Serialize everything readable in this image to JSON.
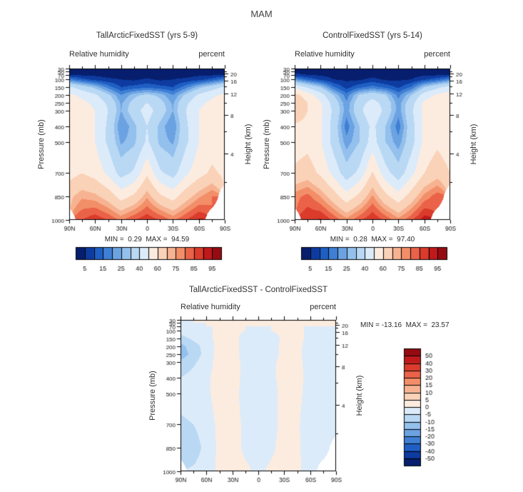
{
  "figure": {
    "title": "MAM"
  },
  "panels": [
    {
      "key": "tall",
      "title": "TallArcticFixedSST (yrs 5-9)",
      "subtitle_left": "Relative humidity",
      "subtitle_right": "percent",
      "minmax": "MIN =  0.29  MAX =  94.59"
    },
    {
      "key": "control",
      "title": "ControlFixedSST (yrs 5-14)",
      "subtitle_left": "Relative humidity",
      "subtitle_right": "percent",
      "minmax": "MIN =  0.28  MAX =  97.40"
    },
    {
      "key": "diff",
      "title": "TallArcticFixedSST - ControlFixedSST",
      "subtitle_left": "Relative humidity",
      "subtitle_right": "percent",
      "minmax": "MIN = -13.16  MAX =  23.57"
    }
  ],
  "axes": {
    "ylabel": "Pressure (mb)",
    "y2label": "Height (km)",
    "pressure_ticks": [
      30,
      50,
      70,
      100,
      150,
      200,
      250,
      300,
      400,
      500,
      700,
      850,
      1000
    ],
    "height_ticks_km": [
      20,
      16,
      12,
      8,
      4
    ],
    "height_minor_km": [
      2,
      6,
      10,
      14,
      18,
      22
    ],
    "lat_ticks": [
      {
        "lat": 90,
        "label": "90N"
      },
      {
        "lat": 60,
        "label": "60N"
      },
      {
        "lat": 30,
        "label": "30N"
      },
      {
        "lat": 0,
        "label": "0"
      },
      {
        "lat": -30,
        "label": "30S"
      },
      {
        "lat": -60,
        "label": "60S"
      },
      {
        "lat": -90,
        "label": "90S"
      }
    ],
    "lat_minor": [
      75,
      45,
      15,
      -15,
      -45,
      -75
    ]
  },
  "chart_data": {
    "type": "heatmap",
    "season": "MAM",
    "field": "Relative humidity",
    "units": "percent",
    "x": [
      90,
      75,
      60,
      45,
      30,
      15,
      0,
      -15,
      -30,
      -45,
      -60,
      -75,
      -90
    ],
    "x_unit": "degrees latitude (90N left to 90S right)",
    "y": [
      30,
      50,
      70,
      100,
      150,
      200,
      250,
      300,
      400,
      500,
      700,
      850,
      1000
    ],
    "y_unit": "mb (linear pressure axis, 30 top to 1000 bottom)",
    "rh_scale": {
      "levels": [
        5,
        10,
        15,
        20,
        25,
        30,
        40,
        50,
        60,
        70,
        75,
        80,
        85,
        90,
        95
      ],
      "labeled": [
        5,
        15,
        25,
        40,
        60,
        75,
        85,
        95
      ],
      "colors": [
        "#071e6e",
        "#0d3ba0",
        "#1f5fc4",
        "#3f7fd4",
        "#6ba2e2",
        "#93c0ec",
        "#b9d8f4",
        "#dcebfa",
        "#fcecdf",
        "#fad2b8",
        "#f7b391",
        "#f28e68",
        "#ea6248",
        "#da3b2b",
        "#c0191c",
        "#960b12"
      ]
    },
    "diff_scale": {
      "levels": [
        -50,
        -40,
        -30,
        -20,
        -15,
        -10,
        -5,
        0,
        5,
        10,
        15,
        20,
        30,
        40,
        50
      ],
      "labeled": [
        50,
        40,
        30,
        20,
        15,
        10,
        5,
        0,
        -5,
        -10,
        -15,
        -20,
        -30,
        -40,
        -50
      ],
      "colors": [
        "#071e6e",
        "#0d3ba0",
        "#1f5fc4",
        "#3f7fd4",
        "#6ba2e2",
        "#93c0ec",
        "#b9d8f4",
        "#dcebfa",
        "#fcecdf",
        "#fad2b8",
        "#f7b391",
        "#f28e68",
        "#ea6248",
        "#da3b2b",
        "#c0191c",
        "#960b12"
      ]
    },
    "series": [
      {
        "name": "TallArcticFixedSST (yrs 5-9)",
        "min": 0.29,
        "max": 94.59,
        "values": [
          [
            2,
            2,
            2,
            2,
            2,
            1,
            1,
            1,
            2,
            2,
            2,
            2,
            2
          ],
          [
            3,
            3,
            3,
            2,
            2,
            1,
            1,
            1,
            2,
            2,
            3,
            3,
            3
          ],
          [
            5,
            4,
            4,
            3,
            3,
            2,
            2,
            2,
            3,
            3,
            4,
            4,
            5
          ],
          [
            18,
            12,
            8,
            6,
            5,
            4,
            6,
            4,
            5,
            6,
            8,
            12,
            18
          ],
          [
            42,
            35,
            28,
            18,
            10,
            12,
            14,
            12,
            10,
            18,
            28,
            35,
            42
          ],
          [
            52,
            48,
            42,
            32,
            20,
            28,
            32,
            28,
            20,
            32,
            42,
            48,
            52
          ],
          [
            56,
            52,
            48,
            38,
            24,
            33,
            40,
            33,
            24,
            38,
            48,
            52,
            56
          ],
          [
            56,
            54,
            50,
            40,
            25,
            35,
            45,
            35,
            25,
            40,
            50,
            54,
            56
          ],
          [
            54,
            55,
            50,
            38,
            20,
            28,
            40,
            28,
            20,
            38,
            50,
            55,
            54
          ],
          [
            52,
            55,
            50,
            38,
            24,
            28,
            42,
            28,
            24,
            38,
            50,
            55,
            52
          ],
          [
            56,
            60,
            56,
            48,
            36,
            42,
            58,
            42,
            36,
            48,
            56,
            62,
            58
          ],
          [
            68,
            74,
            72,
            66,
            56,
            62,
            74,
            62,
            56,
            66,
            74,
            80,
            null
          ],
          [
            null,
            85,
            89,
            85,
            79,
            85,
            89,
            85,
            79,
            85,
            91,
            null,
            null
          ]
        ]
      },
      {
        "name": "ControlFixedSST (yrs 5-14)",
        "min": 0.28,
        "max": 97.4,
        "values": [
          [
            2,
            2,
            2,
            2,
            2,
            1,
            1,
            1,
            2,
            2,
            2,
            2,
            2
          ],
          [
            4,
            3,
            3,
            2,
            2,
            1,
            1,
            1,
            2,
            2,
            3,
            3,
            3
          ],
          [
            6,
            5,
            4,
            3,
            3,
            2,
            2,
            2,
            3,
            3,
            4,
            4,
            5
          ],
          [
            21,
            14,
            9,
            5,
            4,
            4,
            7,
            4,
            4,
            5,
            9,
            13,
            19
          ],
          [
            49,
            39,
            30,
            16,
            8,
            14,
            17,
            14,
            9,
            16,
            30,
            38,
            44
          ],
          [
            64,
            55,
            45,
            30,
            17,
            31,
            36,
            31,
            18,
            30,
            45,
            52,
            55
          ],
          [
            69,
            60,
            51,
            36,
            21,
            36,
            44,
            36,
            22,
            36,
            52,
            56,
            59
          ],
          [
            65,
            60,
            52,
            38,
            22,
            37,
            49,
            37,
            22,
            38,
            53,
            57,
            58
          ],
          [
            59,
            58,
            51,
            36,
            17,
            30,
            43,
            30,
            17,
            36,
            52,
            58,
            56
          ],
          [
            55,
            57,
            51,
            36,
            22,
            30,
            45,
            30,
            22,
            36,
            53,
            58,
            54
          ],
          [
            62,
            65,
            58,
            47,
            34,
            43,
            61,
            44,
            34,
            47,
            60,
            66,
            60
          ],
          [
            78,
            82,
            75,
            65,
            54,
            63,
            76,
            63,
            54,
            65,
            77,
            83,
            null
          ],
          [
            null,
            89,
            91,
            84,
            77,
            84,
            90,
            84,
            77,
            84,
            93,
            null,
            null
          ]
        ]
      },
      {
        "name": "TallArcticFixedSST - ControlFixedSST",
        "min": -13.16,
        "max": 23.57,
        "values": [
          [
            0,
            0,
            0,
            0,
            0,
            0,
            0,
            0,
            0,
            0,
            0,
            0,
            0
          ],
          [
            -1,
            0,
            0,
            0,
            0,
            0,
            0,
            0,
            0,
            0,
            0,
            0,
            0
          ],
          [
            -1,
            -1,
            0,
            0,
            0,
            0,
            0,
            0,
            0,
            0,
            0,
            0,
            0
          ],
          [
            -3,
            -2,
            -1,
            1,
            1,
            0,
            -1,
            0,
            1,
            1,
            -1,
            -1,
            -1
          ],
          [
            -7,
            -4,
            -2,
            2,
            2,
            -2,
            -3,
            -2,
            1,
            2,
            -2,
            -3,
            -2
          ],
          [
            -12,
            -7,
            -3,
            2,
            3,
            -3,
            -4,
            -3,
            2,
            2,
            -3,
            -4,
            -3
          ],
          [
            -13,
            -8,
            -3,
            2,
            3,
            -3,
            -4,
            -3,
            2,
            2,
            -4,
            -4,
            -3
          ],
          [
            -9,
            -6,
            -2,
            2,
            3,
            -2,
            -4,
            -2,
            3,
            2,
            -3,
            -3,
            -2
          ],
          [
            -5,
            -3,
            -1,
            2,
            3,
            -2,
            -3,
            -2,
            3,
            2,
            -2,
            -3,
            -2
          ],
          [
            -3,
            -2,
            -1,
            2,
            2,
            -2,
            -3,
            -2,
            2,
            2,
            -3,
            -3,
            -2
          ],
          [
            -6,
            -5,
            -2,
            1,
            2,
            -1,
            -3,
            -2,
            2,
            1,
            -4,
            -4,
            -2
          ],
          [
            -10,
            -8,
            -3,
            1,
            2,
            -1,
            -2,
            -1,
            2,
            1,
            -3,
            -3,
            null
          ],
          [
            null,
            -4,
            -2,
            1,
            2,
            1,
            -1,
            1,
            2,
            1,
            -2,
            null,
            null
          ]
        ]
      }
    ]
  }
}
